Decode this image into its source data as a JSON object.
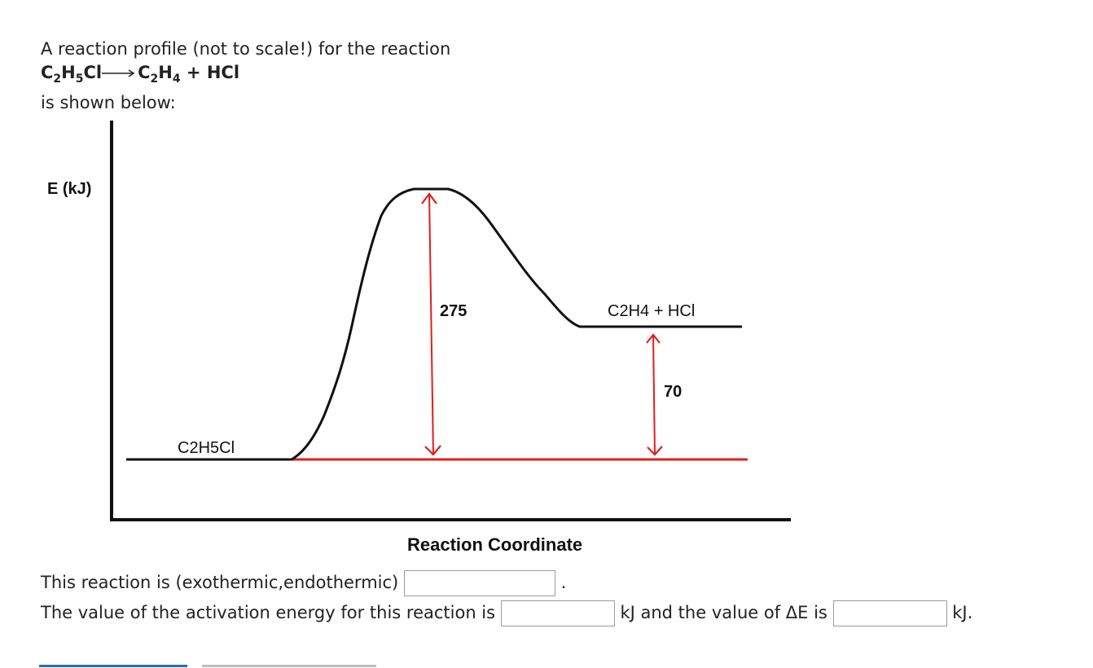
{
  "intro": {
    "line1": "A reaction profile (not to scale!) for the reaction",
    "reactant": "C2H5Cl",
    "products": "C2H4 + HCl",
    "line3": "is shown below:"
  },
  "diagram": {
    "y_axis_label": "E (kJ)",
    "x_axis_label": "Reaction Coordinate",
    "reactant_label": "C2H5Cl",
    "product_label": "C2H4 + HCl",
    "activation_energy_label": "275",
    "delta_e_label": "70",
    "line_color": "#111111",
    "reference_color": "#e0201c"
  },
  "question": {
    "q1_prefix": "This reaction is (exothermic,endothermic)",
    "q1_suffix": ".",
    "q2_prefix": "The value of the activation energy for this reaction is",
    "q2_mid": "kJ and the value of ΔE is",
    "q2_suffix": "kJ."
  }
}
